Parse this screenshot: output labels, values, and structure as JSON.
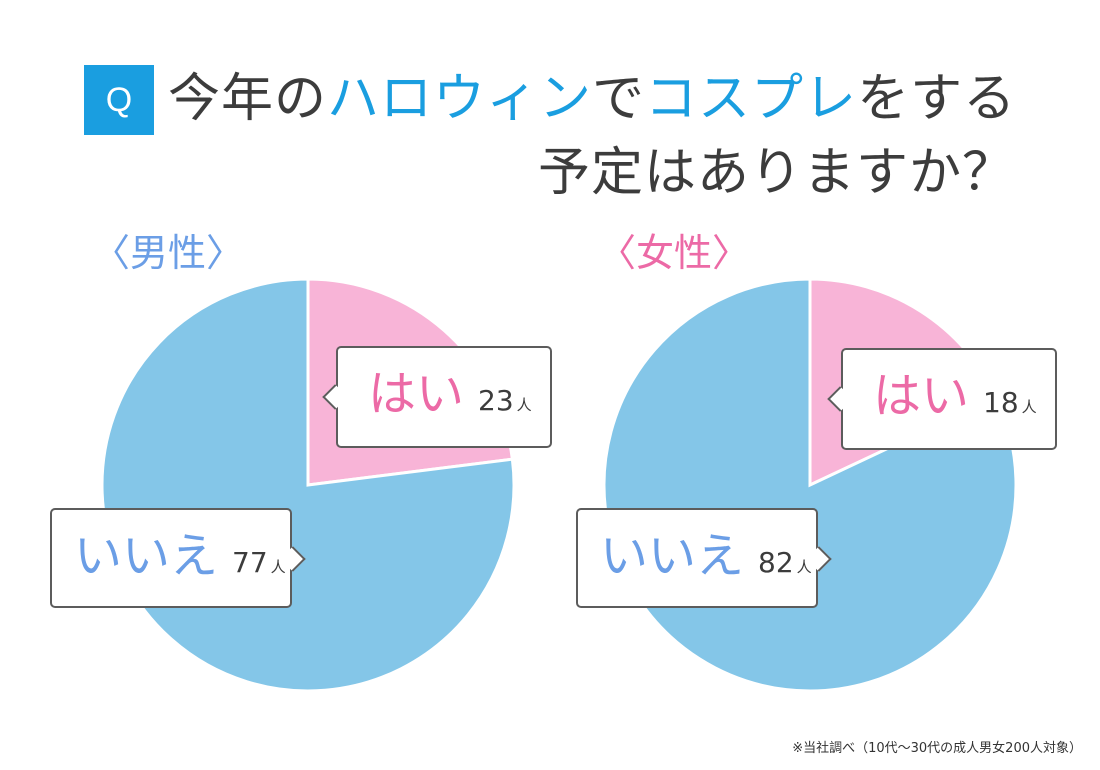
{
  "header": {
    "badge": "Q",
    "title_parts": [
      "今年の",
      "ハロウィン",
      "で",
      "コスプレ",
      "をする"
    ],
    "title_line2": "予定はありますか？"
  },
  "chart_data": [
    {
      "type": "pie",
      "title": "〈男性〉",
      "unit": "人",
      "slices": [
        {
          "label": "はい",
          "value": 23,
          "color": "#f8b4d7"
        },
        {
          "label": "いいえ",
          "value": 77,
          "color": "#84c6e8"
        }
      ]
    },
    {
      "type": "pie",
      "title": "〈女性〉",
      "unit": "人",
      "slices": [
        {
          "label": "はい",
          "value": 18,
          "color": "#f8b4d7"
        },
        {
          "label": "いいえ",
          "value": 82,
          "color": "#84c6e8"
        }
      ]
    }
  ],
  "footnote": "※当社調べ（10代〜30代の成人男女200人対象）"
}
